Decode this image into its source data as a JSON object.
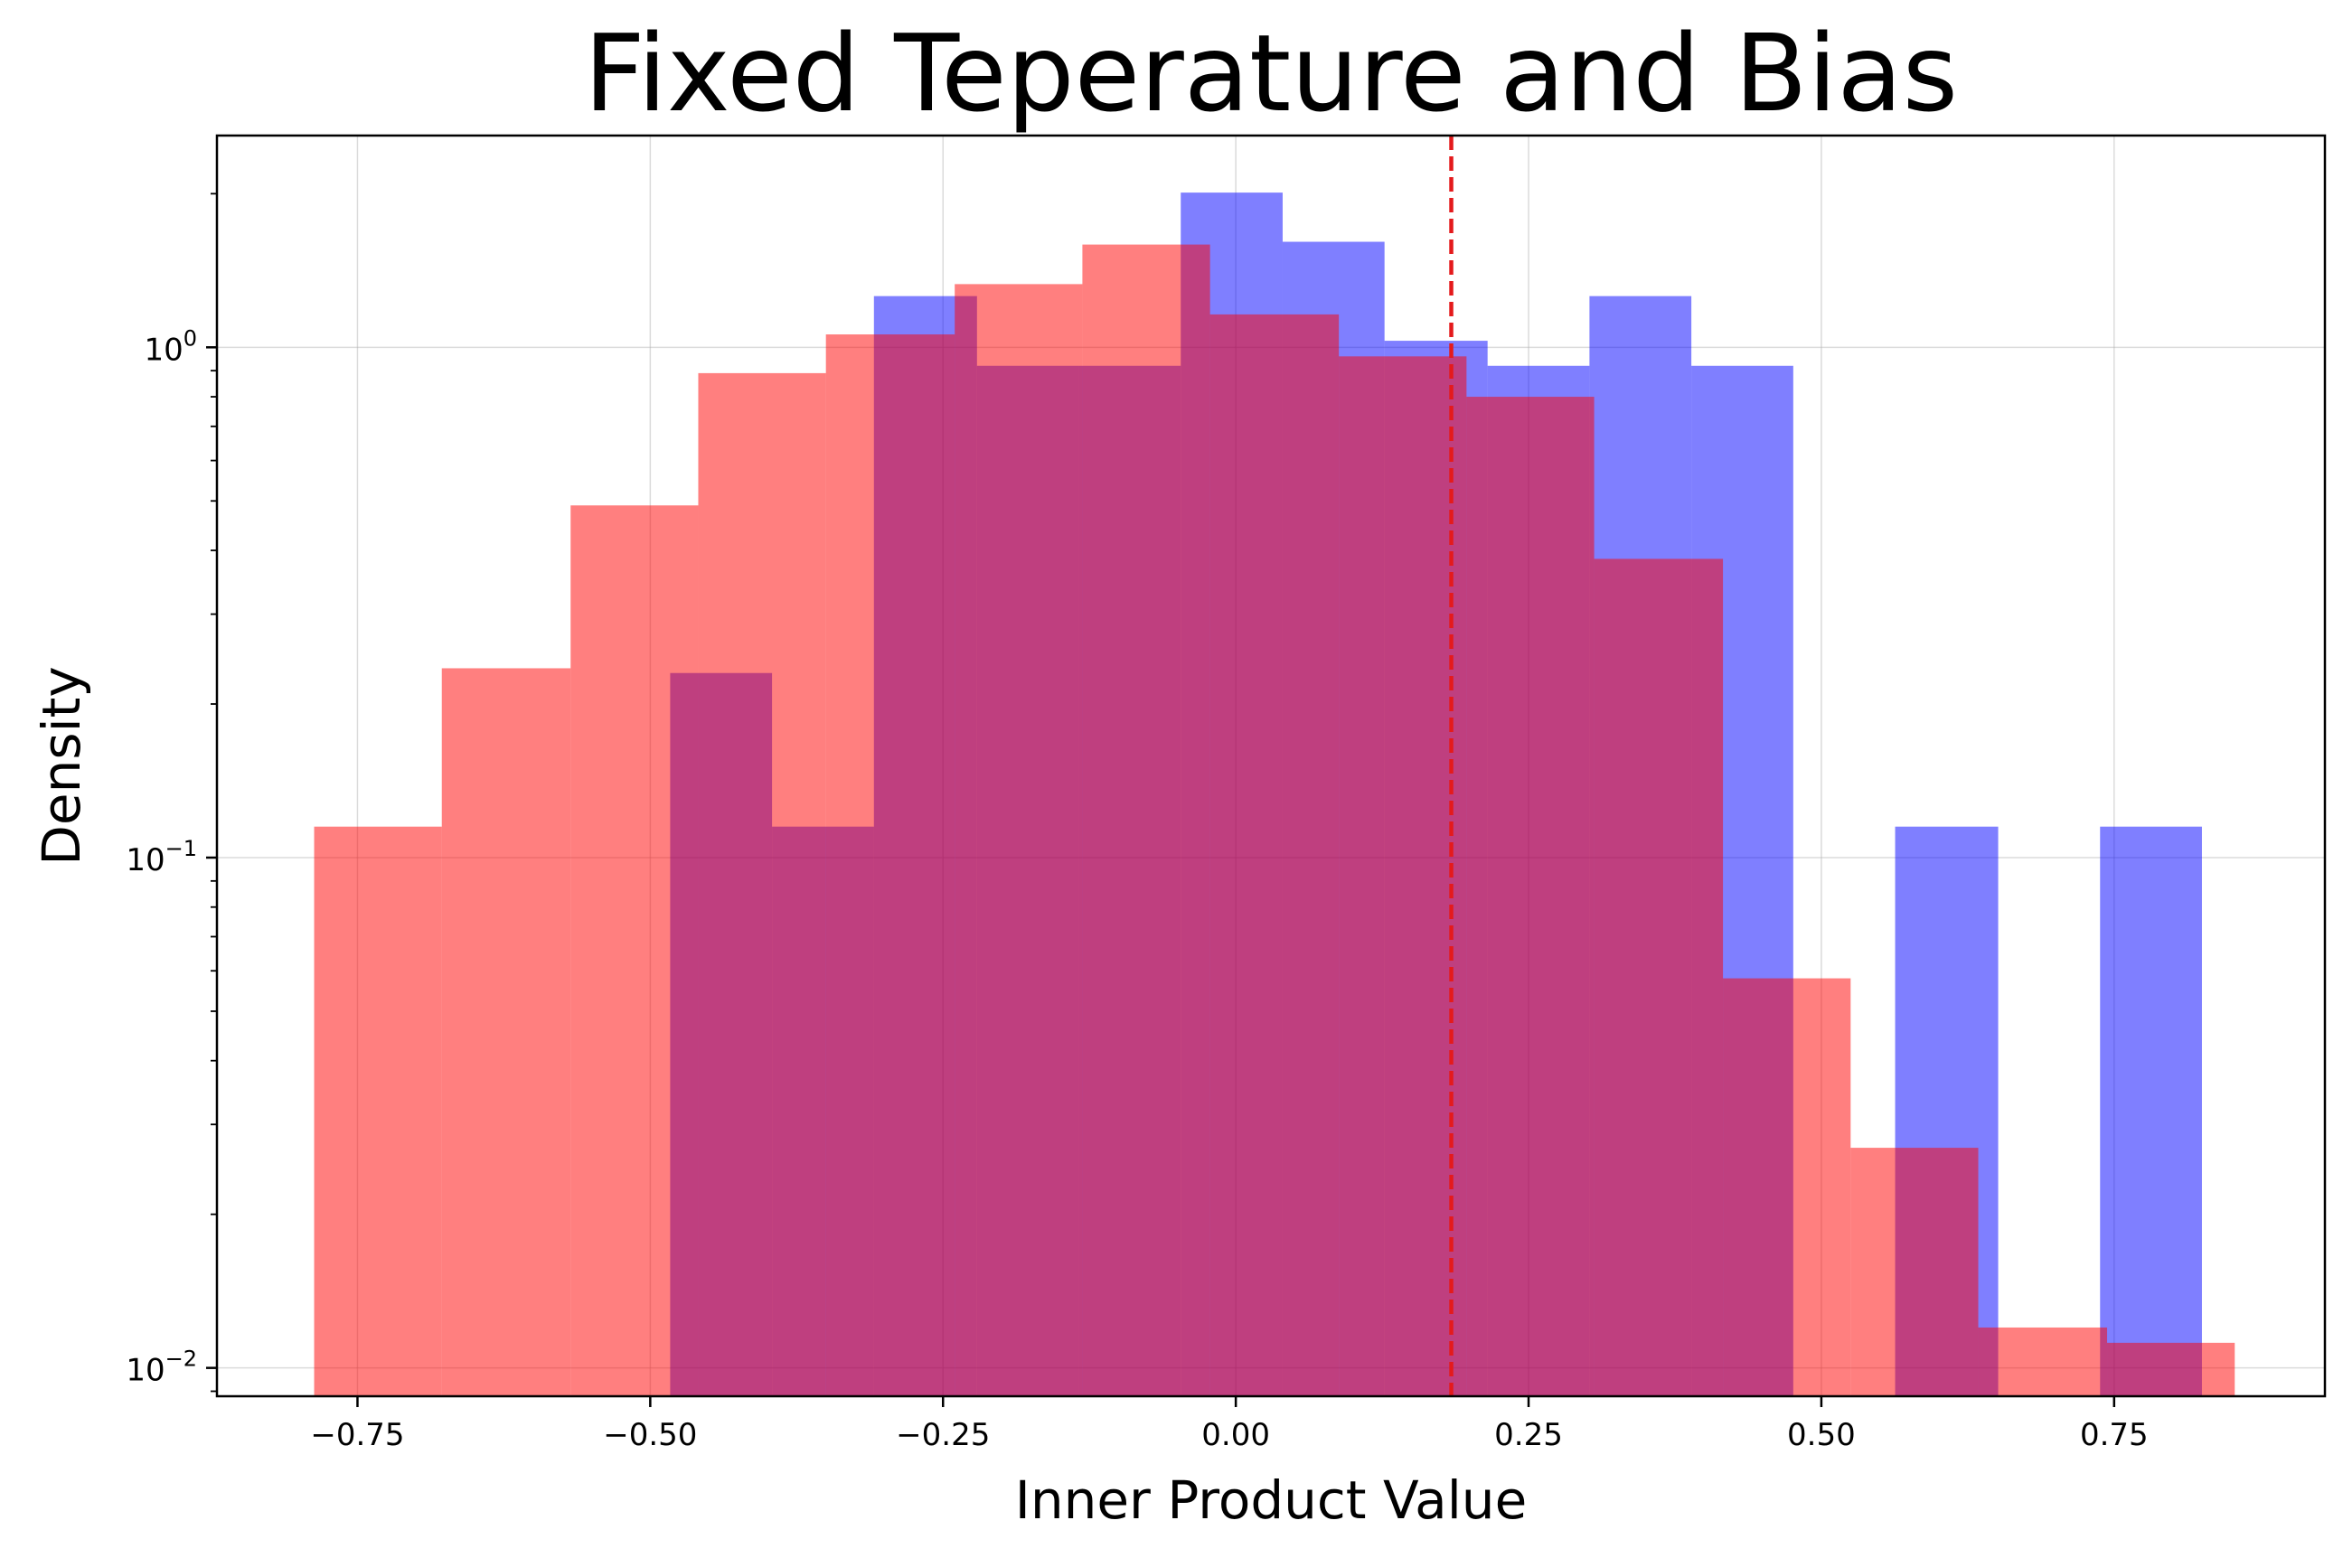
{
  "chart_data": {
    "type": "bar",
    "title": "Fixed Teperature and Bias",
    "xlabel": "Inner Product Value",
    "ylabel": "Density",
    "yscale": "log",
    "xlim": [
      -0.87,
      0.93
    ],
    "ylim": [
      0.0088,
      2.6
    ],
    "grid": true,
    "legend": "none",
    "x_ticks": [
      {
        "value": -0.75,
        "label": "−0.75"
      },
      {
        "value": -0.5,
        "label": "−0.50"
      },
      {
        "value": -0.25,
        "label": "−0.25"
      },
      {
        "value": 0.0,
        "label": "0.00"
      },
      {
        "value": 0.25,
        "label": "0.25"
      },
      {
        "value": 0.5,
        "label": "0.50"
      },
      {
        "value": 0.75,
        "label": "0.75"
      }
    ],
    "y_ticks": [
      {
        "value": 0.01,
        "base": "10",
        "exp": "−2"
      },
      {
        "value": 0.1,
        "base": "10",
        "exp": "−1"
      },
      {
        "value": 1.0,
        "base": "10",
        "exp": "0"
      }
    ],
    "threshold_line": {
      "x": 0.184,
      "color": "#e41a1c",
      "style": "dashed"
    },
    "series": [
      {
        "color": "#0000ff",
        "opacity": 0.5,
        "bin_edges": [
          -0.483,
          -0.396,
          -0.309,
          -0.221,
          -0.134,
          -0.047,
          0.04,
          0.127,
          0.215,
          0.302,
          0.389,
          0.476,
          0.563,
          0.651,
          0.738,
          0.825
        ],
        "values": [
          0.23,
          0.115,
          1.26,
          0.92,
          0.92,
          2.01,
          1.61,
          1.03,
          0.92,
          1.26,
          0.92,
          0.0,
          0.115,
          0.0,
          0.115
        ]
      },
      {
        "color": "#ff0000",
        "opacity": 0.5,
        "bin_edges": [
          -0.787,
          -0.678,
          -0.568,
          -0.459,
          -0.35,
          -0.24,
          -0.131,
          -0.022,
          0.088,
          0.197,
          0.306,
          0.416,
          0.525,
          0.634,
          0.744,
          0.853
        ],
        "values": [
          0.115,
          0.235,
          0.49,
          0.89,
          1.06,
          1.33,
          1.59,
          1.16,
          0.96,
          0.8,
          0.385,
          0.058,
          0.027,
          0.012,
          0.0112
        ]
      }
    ]
  }
}
